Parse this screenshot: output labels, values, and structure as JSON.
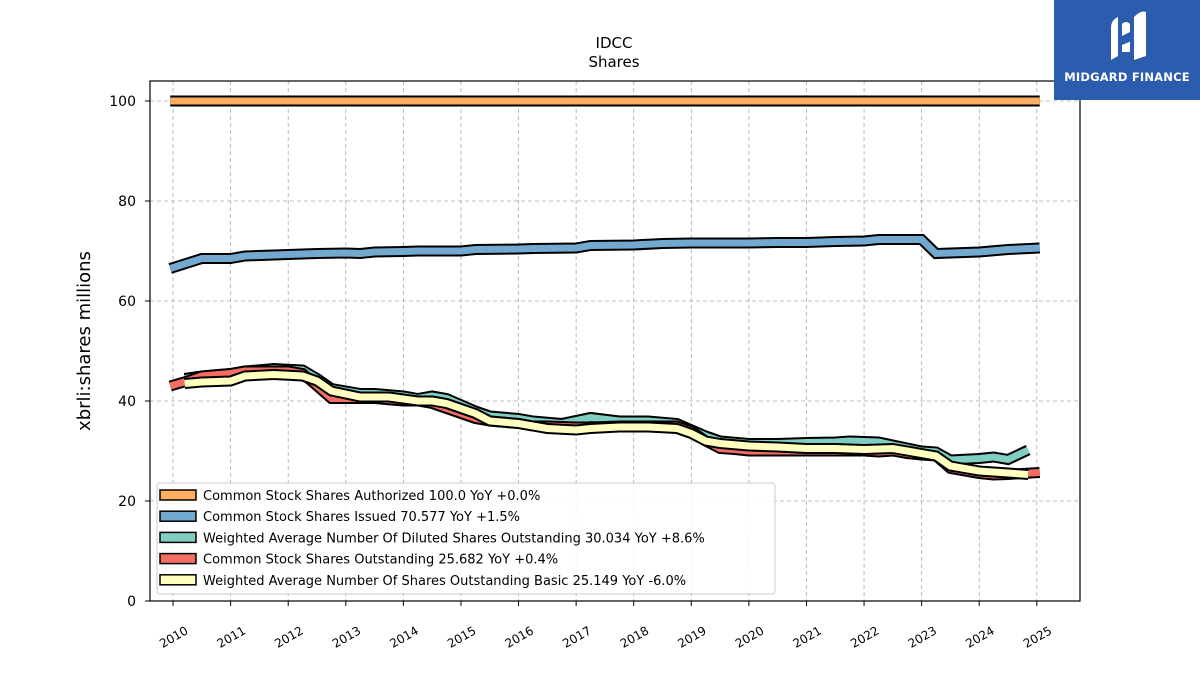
{
  "header": {
    "title_line1": "IDCC",
    "title_line2": "Shares"
  },
  "logo": {
    "brand": "MIDGARD FINANCE",
    "icon": "midgard-logo-icon",
    "color": "#2b5cae"
  },
  "chart_data": {
    "type": "line",
    "title": "IDCC\nShares",
    "ylabel": "xbrli:shares millions",
    "xlabel": "",
    "xlim": [
      2009.6,
      2025.75
    ],
    "ylim": [
      0,
      104
    ],
    "yticks": [
      0,
      20,
      40,
      60,
      80,
      100
    ],
    "xticks": [
      "2010",
      "2011",
      "2012",
      "2013",
      "2014",
      "2015",
      "2016",
      "2017",
      "2018",
      "2019",
      "2020",
      "2021",
      "2022",
      "2023",
      "2024",
      "2025"
    ],
    "grid": true,
    "legend_position": "lower-left",
    "series": [
      {
        "name": "Common Stock Shares Authorized",
        "legend": "Common Stock Shares Authorized  100.0 YoY +0.0%",
        "color": "#fdae61",
        "x": [
          2009.95,
          2025.05
        ],
        "y": [
          100,
          100
        ]
      },
      {
        "name": "Common Stock Shares Issued",
        "legend": "Common Stock Shares Issued  70.577 YoY +1.5%",
        "color": "#74a9cf",
        "x": [
          2009.95,
          2010.5,
          2011.0,
          2011.25,
          2012.0,
          2012.5,
          2013.0,
          2013.25,
          2013.5,
          2014.0,
          2014.25,
          2015.0,
          2015.25,
          2016.0,
          2016.25,
          2017.0,
          2017.25,
          2018.0,
          2018.5,
          2019.0,
          2020.0,
          2020.5,
          2021.0,
          2021.5,
          2022.0,
          2022.25,
          2023.0,
          2023.25,
          2024.0,
          2024.5,
          2025.05
        ],
        "y": [
          66.5,
          68.5,
          68.5,
          69.0,
          69.3,
          69.5,
          69.6,
          69.5,
          69.8,
          69.9,
          70.0,
          70.0,
          70.3,
          70.4,
          70.5,
          70.6,
          71.1,
          71.2,
          71.5,
          71.6,
          71.6,
          71.7,
          71.7,
          71.9,
          72.0,
          72.3,
          72.3,
          69.5,
          69.8,
          70.3,
          70.6
        ]
      },
      {
        "name": "Weighted Average Number Of Diluted Shares Outstanding",
        "legend": "Weighted Average Number Of Diluted Shares Outstanding  30.034 YoY +8.6%",
        "color": "#80cdc1",
        "x": [
          2010.2,
          2010.5,
          2011.0,
          2011.25,
          2011.75,
          2012.25,
          2012.5,
          2012.75,
          2013.25,
          2013.5,
          2014.0,
          2014.25,
          2014.5,
          2014.75,
          2015.25,
          2015.5,
          2016.0,
          2016.25,
          2016.75,
          2017.25,
          2017.75,
          2018.25,
          2018.75,
          2019.25,
          2019.5,
          2020.0,
          2020.5,
          2021.0,
          2021.5,
          2021.75,
          2022.25,
          2022.5,
          2023.0,
          2023.25,
          2023.5,
          2024.0,
          2024.25,
          2024.5,
          2024.85
        ],
        "y": [
          44.5,
          45.0,
          45.5,
          46.0,
          46.5,
          46.2,
          44.5,
          42.5,
          41.5,
          41.5,
          41.0,
          40.5,
          41.0,
          40.5,
          38.0,
          37.0,
          36.5,
          36.0,
          35.5,
          36.7,
          36.0,
          36.0,
          35.5,
          33.0,
          32.0,
          31.5,
          31.5,
          31.7,
          31.8,
          32.0,
          31.8,
          31.2,
          30.0,
          29.8,
          28.2,
          28.5,
          28.8,
          28.3,
          30.2
        ]
      },
      {
        "name": "Common Stock Shares Outstanding",
        "legend": "Common Stock Shares Outstanding  25.682 YoY +0.4%",
        "color": "#f46d63",
        "x": [
          2009.95,
          2010.25,
          2010.5,
          2011.0,
          2011.25,
          2012.0,
          2012.25,
          2012.5,
          2012.75,
          2013.25,
          2013.5,
          2014.0,
          2014.25,
          2014.5,
          2014.75,
          2015.0,
          2015.25,
          2015.5,
          2016.0,
          2016.25,
          2016.5,
          2017.0,
          2017.25,
          2017.75,
          2018.25,
          2018.75,
          2019.0,
          2019.25,
          2019.5,
          2019.75,
          2020.0,
          2020.5,
          2021.0,
          2021.5,
          2022.0,
          2022.25,
          2022.5,
          2022.75,
          2023.0,
          2023.25,
          2023.5,
          2023.75,
          2024.0,
          2024.25,
          2024.5,
          2024.75,
          2025.05
        ],
        "y": [
          43.0,
          44.0,
          45.0,
          45.5,
          46.0,
          46.0,
          45.5,
          43.0,
          40.5,
          40.5,
          40.5,
          40.0,
          40.0,
          39.5,
          38.5,
          37.5,
          36.5,
          36.0,
          35.5,
          35.0,
          35.0,
          34.8,
          34.8,
          35.0,
          35.0,
          35.0,
          34.0,
          32.0,
          30.5,
          30.3,
          30.0,
          30.0,
          30.0,
          30.0,
          30.0,
          29.8,
          30.0,
          29.5,
          29.2,
          29.0,
          26.5,
          26.0,
          25.5,
          25.2,
          25.3,
          25.5,
          25.7
        ]
      },
      {
        "name": "Weighted Average Number Of Shares Outstanding Basic",
        "legend": "Weighted Average Number Of Shares Outstanding Basic  25.149 YoY -6.0%",
        "color": "#ffffbf",
        "x": [
          2010.2,
          2010.5,
          2011.0,
          2011.25,
          2011.75,
          2012.25,
          2012.5,
          2012.75,
          2013.25,
          2013.75,
          2014.25,
          2014.5,
          2014.75,
          2015.0,
          2015.25,
          2015.5,
          2016.0,
          2016.25,
          2016.5,
          2017.0,
          2017.25,
          2017.75,
          2018.25,
          2018.75,
          2019.0,
          2019.25,
          2019.5,
          2020.0,
          2020.5,
          2021.0,
          2021.5,
          2022.0,
          2022.5,
          2022.75,
          2023.0,
          2023.25,
          2023.5,
          2023.75,
          2024.0,
          2024.25,
          2024.5,
          2024.85
        ],
        "y": [
          43.5,
          43.8,
          44.0,
          45.0,
          45.3,
          45.0,
          44.0,
          42.0,
          40.8,
          40.8,
          40.0,
          40.0,
          39.5,
          38.5,
          37.5,
          36.0,
          35.5,
          35.0,
          34.5,
          34.2,
          34.5,
          34.8,
          34.8,
          34.5,
          33.5,
          32.0,
          31.5,
          31.0,
          30.8,
          30.5,
          30.5,
          30.3,
          30.5,
          30.0,
          29.5,
          29.0,
          27.0,
          26.5,
          26.0,
          25.8,
          25.6,
          25.3
        ]
      }
    ]
  }
}
